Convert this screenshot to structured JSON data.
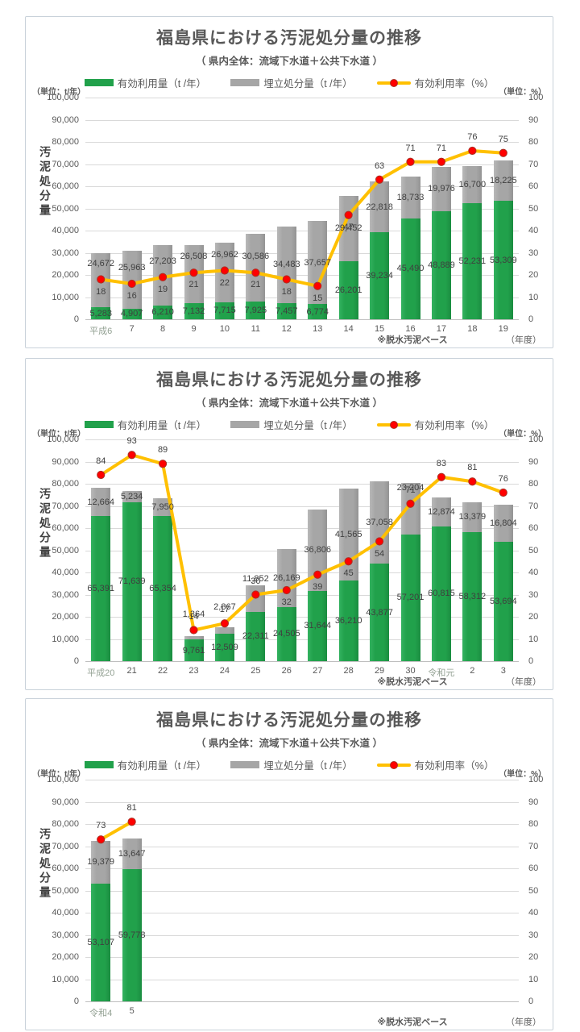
{
  "page": {
    "background": "#ffffff",
    "panel_border_color": "#c9d2da"
  },
  "chart_data": [
    {
      "type": "bar",
      "combo": "stacked-bar+line",
      "title": "福島県における汚泥処分量の推移",
      "subtitle": "（ 県内全体：流域下水道＋公共下水道 ）",
      "unit_left": "（単位：t/年）",
      "unit_right": "（単位：%）",
      "ylabel": "汚泥処分量",
      "note": "※脱水汚泥ベース",
      "x_unit": "（年度）",
      "grid": true,
      "legend_position": "top",
      "ylim_left": [
        0,
        100000
      ],
      "ytick_step_left": 10000,
      "ylim_right": [
        0,
        100
      ],
      "ytick_step_right": 10,
      "max_slots": 14,
      "categories": [
        "平成6",
        "7",
        "8",
        "9",
        "10",
        "11",
        "12",
        "13",
        "14",
        "15",
        "16",
        "17",
        "18",
        "19"
      ],
      "series": [
        {
          "name": "有効利用量（t /年）",
          "type": "bar",
          "color": "#21a14b",
          "values": [
            5283,
            4907,
            6210,
            7132,
            7715,
            7925,
            7457,
            6774,
            26201,
            39234,
            45490,
            48889,
            52231,
            53309
          ]
        },
        {
          "name": "埋立処分量（t /年）",
          "type": "bar",
          "color": "#a6a6a6",
          "values": [
            24672,
            25963,
            27203,
            26508,
            26962,
            30586,
            34483,
            37657,
            29452,
            22818,
            18733,
            19976,
            16700,
            18225
          ]
        },
        {
          "name": "有効利用率（%）",
          "type": "line",
          "axis": "right",
          "color": "#ffc000",
          "marker_color": "#ff0000",
          "values": [
            18,
            16,
            19,
            21,
            22,
            21,
            18,
            15,
            47,
            63,
            71,
            71,
            76,
            75
          ],
          "label_pos": [
            "below",
            "below",
            "below",
            "below",
            "below",
            "below",
            "below",
            "below",
            "below",
            "above",
            "above",
            "above",
            "above",
            "above"
          ]
        }
      ]
    },
    {
      "type": "bar",
      "combo": "stacked-bar+line",
      "title": "福島県における汚泥処分量の推移",
      "subtitle": "（ 県内全体：流域下水道＋公共下水道 ）",
      "unit_left": "（単位：t/年）",
      "unit_right": "（単位：%）",
      "ylabel": "汚泥処分量",
      "note": "※脱水汚泥ベース",
      "x_unit": "（年度）",
      "grid": true,
      "legend_position": "top",
      "ylim_left": [
        0,
        100000
      ],
      "ytick_step_left": 10000,
      "ylim_right": [
        0,
        100
      ],
      "ytick_step_right": 10,
      "max_slots": 14,
      "categories": [
        "平成20",
        "21",
        "22",
        "23",
        "24",
        "25",
        "26",
        "27",
        "28",
        "29",
        "30",
        "令和元",
        "2",
        "3"
      ],
      "series": [
        {
          "name": "有効利用量（t /年）",
          "type": "bar",
          "color": "#21a14b",
          "values": [
            65391,
            71639,
            65354,
            9761,
            12509,
            22311,
            24505,
            31644,
            36210,
            43877,
            57201,
            60815,
            58312,
            53694
          ]
        },
        {
          "name": "埋立処分量（t /年）",
          "type": "bar",
          "color": "#a6a6a6",
          "values": [
            12664,
            5234,
            7950,
            1364,
            2867,
            11852,
            26169,
            36806,
            41565,
            37058,
            23204,
            12874,
            13379,
            16804
          ]
        },
        {
          "name": "有効利用率（%）",
          "type": "line",
          "axis": "right",
          "color": "#ffc000",
          "marker_color": "#ff0000",
          "values": [
            84,
            93,
            89,
            14,
            17,
            30,
            32,
            39,
            45,
            54,
            71,
            83,
            81,
            76
          ],
          "label_pos": [
            "above",
            "above",
            "above",
            "above",
            "above",
            "above",
            "below",
            "below",
            "below",
            "below",
            "above",
            "above",
            "above",
            "above"
          ]
        }
      ]
    },
    {
      "type": "bar",
      "combo": "stacked-bar+line",
      "title": "福島県における汚泥処分量の推移",
      "subtitle": "（ 県内全体：流域下水道＋公共下水道 ）",
      "unit_left": "（単位：t/年）",
      "unit_right": "（単位：%）",
      "ylabel": "汚泥処分量",
      "note": "※脱水汚泥ベース",
      "x_unit": "（年度）",
      "grid": true,
      "legend_position": "top",
      "ylim_left": [
        0,
        100000
      ],
      "ytick_step_left": 10000,
      "ylim_right": [
        0,
        100
      ],
      "ytick_step_right": 10,
      "max_slots": 14,
      "categories": [
        "令和4",
        "5"
      ],
      "series": [
        {
          "name": "有効利用量（t /年）",
          "type": "bar",
          "color": "#21a14b",
          "values": [
            53107,
            59778
          ]
        },
        {
          "name": "埋立処分量（t /年）",
          "type": "bar",
          "color": "#a6a6a6",
          "values": [
            19379,
            13647
          ]
        },
        {
          "name": "有効利用率（%）",
          "type": "line",
          "axis": "right",
          "color": "#ffc000",
          "marker_color": "#ff0000",
          "values": [
            73,
            81
          ],
          "label_pos": [
            "above",
            "above"
          ]
        }
      ]
    }
  ]
}
